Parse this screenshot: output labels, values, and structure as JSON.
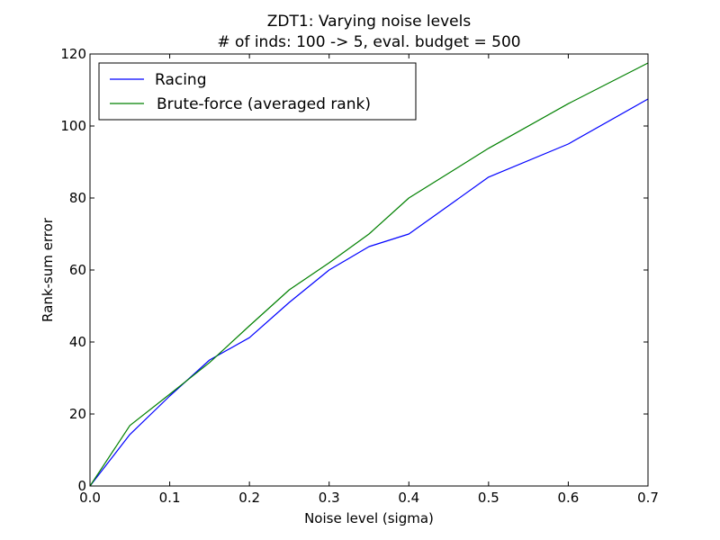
{
  "chart_data": {
    "type": "line",
    "title_line1": "ZDT1: Varying noise levels",
    "title_line2": "# of inds: 100 -> 5, eval. budget = 500",
    "xlabel": "Noise level (sigma)",
    "ylabel": "Rank-sum error",
    "xlim": [
      0.0,
      0.7
    ],
    "ylim": [
      0,
      120
    ],
    "x_ticks": [
      0.0,
      0.1,
      0.2,
      0.3,
      0.4,
      0.5,
      0.6,
      0.7
    ],
    "x_tick_labels": [
      "0.0",
      "0.1",
      "0.2",
      "0.3",
      "0.4",
      "0.5",
      "0.6",
      "0.7"
    ],
    "y_ticks": [
      0,
      20,
      40,
      60,
      80,
      100,
      120
    ],
    "y_tick_labels": [
      "0",
      "20",
      "40",
      "60",
      "80",
      "100",
      "120"
    ],
    "grid": false,
    "legend_position": "top-left",
    "series": [
      {
        "name": "Racing",
        "color": "#0000ff",
        "x": [
          0.0,
          0.05,
          0.1,
          0.15,
          0.2,
          0.25,
          0.3,
          0.35,
          0.4,
          0.5,
          0.6,
          0.7
        ],
        "y": [
          0,
          14.3,
          25.0,
          35.0,
          41.2,
          51.0,
          60.0,
          66.5,
          70.0,
          85.8,
          95.0,
          107.5
        ]
      },
      {
        "name": "Brute-force (averaged rank)",
        "color": "#008000",
        "x": [
          0.0,
          0.05,
          0.1,
          0.15,
          0.2,
          0.25,
          0.3,
          0.35,
          0.4,
          0.5,
          0.6,
          0.7
        ],
        "y": [
          0,
          16.8,
          25.5,
          34.3,
          44.5,
          54.5,
          62.0,
          70.0,
          80.0,
          93.8,
          106.2,
          117.5
        ]
      }
    ]
  }
}
